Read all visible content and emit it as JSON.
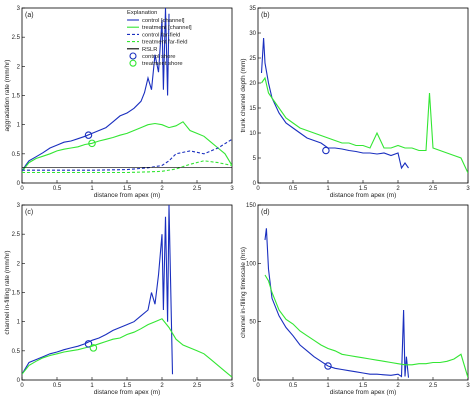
{
  "colors": {
    "control": "#1a2fbf",
    "treatment": "#33e633",
    "rsl": "#000000"
  },
  "chart_data": [
    {
      "id": "a",
      "panel_label": "(a)",
      "type": "line",
      "xlabel": "distance from apex (m)",
      "ylabel": "aggradation rate (mm/hr)",
      "xlim": [
        0,
        3
      ],
      "ylim": [
        0,
        3
      ],
      "xticks": [
        "0",
        "0.5",
        "1",
        "1.5",
        "2",
        "2.5",
        "3"
      ],
      "yticks": [
        "0",
        "0.5",
        "1",
        "1.5",
        "2",
        "2.5",
        "3"
      ],
      "legend": {
        "placement": "top-right",
        "title": "Explanation",
        "entries": [
          "control [channel]",
          "treatment [channel]",
          "control far-field",
          "treatment far-field",
          "RSLR",
          "control shore",
          "treatment shore"
        ]
      },
      "series": [
        {
          "name": "control [channel]",
          "style": "solid",
          "color_key": "control",
          "x": [
            0,
            0.05,
            0.1,
            0.2,
            0.3,
            0.4,
            0.5,
            0.6,
            0.7,
            0.8,
            0.9,
            1.0,
            1.1,
            1.2,
            1.3,
            1.4,
            1.5,
            1.6,
            1.7,
            1.75,
            1.8,
            1.85,
            1.9,
            1.95,
            2.0,
            2.02,
            2.05,
            2.08,
            2.1
          ],
          "y": [
            0.2,
            0.3,
            0.38,
            0.45,
            0.52,
            0.6,
            0.65,
            0.7,
            0.72,
            0.76,
            0.8,
            0.85,
            0.9,
            0.95,
            1.05,
            1.15,
            1.2,
            1.28,
            1.4,
            1.55,
            1.8,
            1.6,
            2.2,
            1.9,
            2.8,
            1.6,
            3.0,
            1.5,
            2.9
          ]
        },
        {
          "name": "treatment [channel]",
          "style": "solid",
          "color_key": "treatment",
          "x": [
            0,
            0.1,
            0.2,
            0.3,
            0.4,
            0.5,
            0.6,
            0.7,
            0.8,
            0.9,
            1.0,
            1.1,
            1.2,
            1.3,
            1.4,
            1.5,
            1.6,
            1.7,
            1.8,
            1.9,
            2.0,
            2.1,
            2.2,
            2.3,
            2.4,
            2.5,
            2.6,
            2.7,
            2.8,
            2.9,
            3.0
          ],
          "y": [
            0.2,
            0.35,
            0.42,
            0.46,
            0.5,
            0.55,
            0.58,
            0.6,
            0.62,
            0.66,
            0.68,
            0.72,
            0.75,
            0.78,
            0.82,
            0.85,
            0.9,
            0.95,
            1.0,
            1.02,
            1.0,
            0.95,
            0.98,
            1.05,
            0.9,
            0.85,
            0.8,
            0.7,
            0.6,
            0.5,
            0.3
          ]
        },
        {
          "name": "control far-field",
          "style": "dashed",
          "color_key": "control",
          "x": [
            0,
            0.5,
            1.0,
            1.5,
            1.8,
            2.0,
            2.1,
            2.2,
            2.4,
            2.6,
            2.8,
            3.0
          ],
          "y": [
            0.22,
            0.22,
            0.22,
            0.23,
            0.26,
            0.3,
            0.38,
            0.5,
            0.55,
            0.5,
            0.6,
            0.75
          ]
        },
        {
          "name": "treatment far-field",
          "style": "dashed",
          "color_key": "treatment",
          "x": [
            0,
            0.5,
            1.0,
            1.5,
            1.8,
            2.0,
            2.2,
            2.4,
            2.6,
            2.8,
            3.0
          ],
          "y": [
            0.18,
            0.18,
            0.18,
            0.18,
            0.19,
            0.2,
            0.24,
            0.32,
            0.38,
            0.35,
            0.3
          ]
        },
        {
          "name": "RSLR",
          "style": "solid",
          "color_key": "rsl",
          "x": [
            0,
            3.0
          ],
          "y": [
            0.27,
            0.27
          ]
        }
      ],
      "markers": [
        {
          "name": "control shore",
          "color_key": "control",
          "x": 0.95,
          "y": 0.82
        },
        {
          "name": "treatment shore",
          "color_key": "treatment",
          "x": 1.0,
          "y": 0.68
        }
      ]
    },
    {
      "id": "b",
      "panel_label": "(b)",
      "type": "line",
      "xlabel": "distance from apex (m)",
      "ylabel": "trunk channel depth (mm)",
      "xlim": [
        0,
        3
      ],
      "ylim": [
        0,
        35
      ],
      "xticks": [
        "0",
        "0.5",
        "1",
        "1.5",
        "2",
        "2.5",
        "3"
      ],
      "yticks": [
        "0",
        "5",
        "10",
        "15",
        "20",
        "25",
        "30",
        "35"
      ],
      "series": [
        {
          "name": "control",
          "style": "solid",
          "color_key": "control",
          "x": [
            0.05,
            0.08,
            0.1,
            0.15,
            0.2,
            0.3,
            0.4,
            0.5,
            0.6,
            0.7,
            0.8,
            0.9,
            1.0,
            1.1,
            1.2,
            1.3,
            1.4,
            1.5,
            1.6,
            1.7,
            1.8,
            1.9,
            2.0,
            2.05,
            2.1,
            2.15
          ],
          "y": [
            22,
            29,
            24,
            20,
            17,
            14,
            12,
            11,
            10,
            9,
            8.5,
            8,
            7,
            7,
            6.8,
            6.5,
            6.3,
            6,
            6,
            5.8,
            6,
            5.5,
            6,
            3,
            4,
            3
          ]
        },
        {
          "name": "treatment",
          "style": "solid",
          "color_key": "treatment",
          "x": [
            0.05,
            0.1,
            0.15,
            0.2,
            0.3,
            0.4,
            0.5,
            0.6,
            0.7,
            0.8,
            0.9,
            1.0,
            1.1,
            1.2,
            1.3,
            1.4,
            1.5,
            1.6,
            1.7,
            1.8,
            1.9,
            2.0,
            2.1,
            2.2,
            2.3,
            2.4,
            2.45,
            2.5,
            2.6,
            2.7,
            2.8,
            2.9,
            3.0
          ],
          "y": [
            20,
            21,
            18,
            17,
            15,
            13,
            12,
            11,
            10.5,
            10,
            9.5,
            9,
            8.5,
            8,
            8,
            7.5,
            7.5,
            7,
            10,
            7,
            7,
            7.5,
            7,
            7,
            6.5,
            6.5,
            18,
            7,
            6.5,
            6,
            5.5,
            5,
            2
          ]
        }
      ],
      "markers": [
        {
          "name": "control shore",
          "color_key": "control",
          "x": 0.97,
          "y": 6.5
        }
      ]
    },
    {
      "id": "c",
      "panel_label": "(c)",
      "type": "line",
      "xlabel": "distance from apex (m)",
      "ylabel": "channel in-filling rate (mm/hr)",
      "xlim": [
        0,
        3
      ],
      "ylim": [
        0,
        3
      ],
      "xticks": [
        "0",
        "0.5",
        "1",
        "1.5",
        "2",
        "2.5",
        "3"
      ],
      "yticks": [
        "0",
        "0.5",
        "1",
        "1.5",
        "2",
        "2.5",
        "3"
      ],
      "series": [
        {
          "name": "control",
          "style": "solid",
          "color_key": "control",
          "x": [
            0,
            0.05,
            0.1,
            0.2,
            0.3,
            0.4,
            0.5,
            0.6,
            0.7,
            0.8,
            0.9,
            1.0,
            1.1,
            1.2,
            1.3,
            1.4,
            1.5,
            1.6,
            1.7,
            1.8,
            1.85,
            1.9,
            1.95,
            2.0,
            2.02,
            2.05,
            2.08,
            2.1,
            2.15
          ],
          "y": [
            0.1,
            0.2,
            0.3,
            0.35,
            0.4,
            0.45,
            0.48,
            0.52,
            0.55,
            0.58,
            0.62,
            0.68,
            0.72,
            0.78,
            0.85,
            0.9,
            0.95,
            1.0,
            1.1,
            1.2,
            1.5,
            1.3,
            1.8,
            2.5,
            1.2,
            2.8,
            1.0,
            3.0,
            0.1
          ]
        },
        {
          "name": "treatment",
          "style": "solid",
          "color_key": "treatment",
          "x": [
            0,
            0.1,
            0.2,
            0.3,
            0.4,
            0.5,
            0.6,
            0.7,
            0.8,
            0.9,
            1.0,
            1.1,
            1.2,
            1.3,
            1.4,
            1.5,
            1.6,
            1.7,
            1.8,
            1.9,
            2.0,
            2.1,
            2.2,
            2.3,
            2.4,
            2.5,
            2.6,
            2.7,
            2.8,
            2.9,
            3.0
          ],
          "y": [
            0.1,
            0.25,
            0.32,
            0.38,
            0.42,
            0.45,
            0.48,
            0.5,
            0.52,
            0.55,
            0.58,
            0.62,
            0.66,
            0.7,
            0.72,
            0.78,
            0.82,
            0.88,
            0.95,
            1.0,
            1.05,
            0.9,
            0.7,
            0.6,
            0.55,
            0.5,
            0.45,
            0.35,
            0.25,
            0.15,
            0.05
          ]
        }
      ],
      "markers": [
        {
          "name": "control shore",
          "color_key": "control",
          "x": 0.95,
          "y": 0.62
        },
        {
          "name": "treatment shore",
          "color_key": "treatment",
          "x": 1.02,
          "y": 0.55
        }
      ]
    },
    {
      "id": "d",
      "panel_label": "(d)",
      "type": "line",
      "xlabel": "distance from apex (m)",
      "ylabel": "channel in-filling timescale (hrs)",
      "xlim": [
        0,
        3
      ],
      "ylim": [
        0,
        150
      ],
      "xticks": [
        "0",
        "0.5",
        "1",
        "1.5",
        "2",
        "2.5",
        "3"
      ],
      "yticks": [
        "0",
        "50",
        "100",
        "150"
      ],
      "series": [
        {
          "name": "control",
          "style": "solid",
          "color_key": "control",
          "x": [
            0.1,
            0.12,
            0.15,
            0.2,
            0.3,
            0.4,
            0.5,
            0.6,
            0.7,
            0.8,
            0.9,
            1.0,
            1.1,
            1.2,
            1.3,
            1.4,
            1.5,
            1.6,
            1.7,
            1.8,
            1.9,
            2.0,
            2.05,
            2.08,
            2.1,
            2.12,
            2.15
          ],
          "y": [
            120,
            130,
            95,
            70,
            55,
            45,
            38,
            30,
            25,
            20,
            16,
            12,
            10,
            9,
            8,
            7,
            6,
            5,
            5,
            4.5,
            4,
            5,
            3,
            60,
            3,
            20,
            2
          ]
        },
        {
          "name": "treatment",
          "style": "solid",
          "color_key": "treatment",
          "x": [
            0.1,
            0.15,
            0.2,
            0.3,
            0.4,
            0.5,
            0.6,
            0.7,
            0.8,
            0.9,
            1.0,
            1.1,
            1.2,
            1.3,
            1.4,
            1.5,
            1.6,
            1.7,
            1.8,
            1.9,
            2.0,
            2.1,
            2.2,
            2.3,
            2.4,
            2.5,
            2.6,
            2.7,
            2.8,
            2.9,
            3.0
          ],
          "y": [
            90,
            85,
            75,
            60,
            52,
            48,
            42,
            38,
            34,
            30,
            27,
            25,
            22,
            21,
            20,
            19,
            18,
            17,
            16,
            15,
            14,
            13,
            13,
            14,
            14,
            15,
            15,
            16,
            18,
            22,
            2
          ]
        }
      ],
      "markers": [
        {
          "name": "control shore",
          "color_key": "control",
          "x": 1.0,
          "y": 12
        }
      ]
    }
  ]
}
